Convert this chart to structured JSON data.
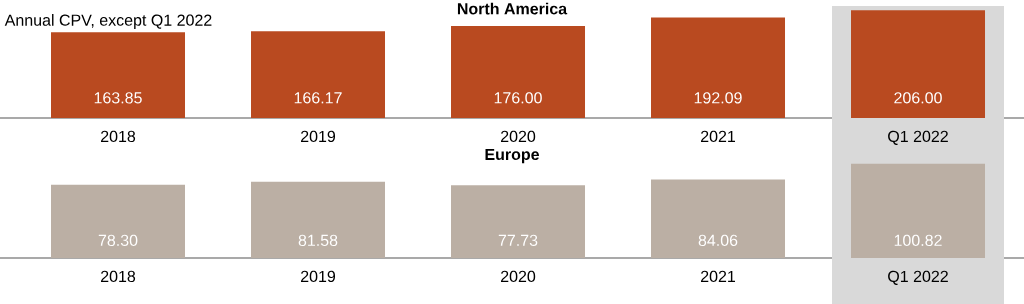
{
  "chart_data": [
    {
      "type": "bar",
      "title": "North America",
      "annotations": [
        "Annual CPV, except Q1 2022"
      ],
      "categories": [
        "2018",
        "2019",
        "2020",
        "2021",
        "Q1 2022"
      ],
      "values": [
        163.85,
        166.17,
        176.0,
        192.09,
        206.0
      ],
      "value_labels": [
        "163.85",
        "166.17",
        "176.00",
        "192.09",
        "206.00"
      ],
      "color": "#b94a20",
      "bands": [
        {
          "axis": "x",
          "from": "Q1 2022",
          "to": "Q1 2022",
          "color": "#d9d9d9"
        }
      ]
    },
    {
      "type": "bar",
      "title": "Europe",
      "categories": [
        "2018",
        "2019",
        "2020",
        "2021",
        "Q1 2022"
      ],
      "values": [
        78.3,
        81.58,
        77.73,
        84.06,
        100.82
      ],
      "value_labels": [
        "78.30",
        "81.58",
        "77.73",
        "84.06",
        "100.82"
      ],
      "color": "#bbafa4",
      "bands": [
        {
          "axis": "x",
          "from": "Q1 2022",
          "to": "Q1 2022",
          "color": "#d9d9d9"
        }
      ]
    }
  ]
}
